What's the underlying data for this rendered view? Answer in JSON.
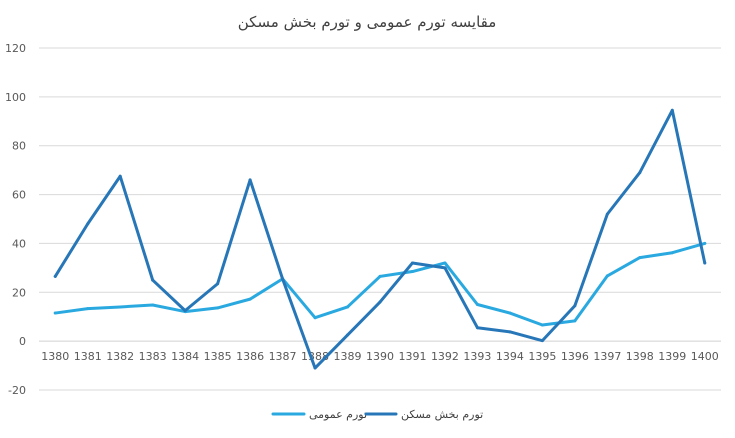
{
  "chart_data": {
    "type": "line",
    "title": "مقایسه تورم عمومی و تورم بخش مسکن",
    "x": [
      "1380",
      "1381",
      "1382",
      "1383",
      "1384",
      "1385",
      "1386",
      "1387",
      "1388",
      "1389",
      "1390",
      "1391",
      "1392",
      "1393",
      "1394",
      "1395",
      "1396",
      "1397",
      "1398",
      "1399",
      "1400"
    ],
    "ylim": [
      -20,
      120
    ],
    "yticks": [
      -20,
      0,
      20,
      40,
      60,
      80,
      100,
      120
    ],
    "grid": true,
    "legend_position": "bottom",
    "series": [
      {
        "name": "تورم عمومی",
        "color": "#2aa9e0",
        "values": [
          11.5,
          13.3,
          14,
          14.8,
          12.1,
          13.6,
          17.2,
          25.5,
          9.6,
          14,
          26.5,
          28.5,
          32,
          15,
          11.5,
          6.6,
          8.3,
          26.7,
          34.2,
          36.2,
          40
        ]
      },
      {
        "name": "تورم بخش مسکن",
        "color": "#2777b8",
        "values": [
          26.5,
          48,
          67.5,
          25,
          12.5,
          23.5,
          66,
          25.5,
          -11,
          2.5,
          16,
          32,
          30,
          5.5,
          3.8,
          0.2,
          14.5,
          52,
          69,
          94.5,
          32
        ]
      }
    ]
  }
}
